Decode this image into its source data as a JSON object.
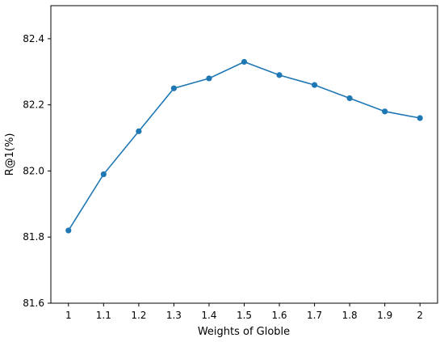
{
  "chart_data": {
    "type": "line",
    "title": "",
    "xlabel": "Weights of Globle",
    "ylabel": "R@1(%)",
    "x": [
      1,
      1.1,
      1.2,
      1.3,
      1.4,
      1.5,
      1.6,
      1.7,
      1.8,
      1.9,
      2
    ],
    "x_tick_labels": [
      "1",
      "1.1",
      "1.2",
      "1.3",
      "1.4",
      "1.5",
      "1.6",
      "1.7",
      "1.8",
      "1.9",
      "2"
    ],
    "series": [
      {
        "values": [
          81.82,
          81.99,
          82.12,
          82.25,
          82.28,
          82.33,
          82.29,
          82.26,
          82.22,
          82.18,
          82.16
        ],
        "color": "#1f77b4",
        "marker": "circle"
      }
    ],
    "y_ticks": [
      81.6,
      81.8,
      82.0,
      82.2,
      82.4
    ],
    "y_tick_labels": [
      "81.6",
      "81.8",
      "82.0",
      "82.2",
      "82.4"
    ],
    "xlim": [
      0.95,
      2.05
    ],
    "ylim": [
      81.6,
      82.5
    ],
    "grid": false,
    "legend": "none"
  }
}
